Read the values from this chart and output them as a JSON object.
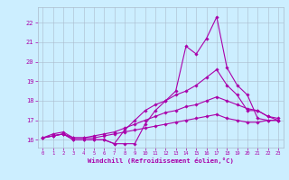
{
  "xlabel": "Windchill (Refroidissement éolien,°C)",
  "bg_color": "#cceeff",
  "grid_color": "#aabbcc",
  "line_color": "#aa00aa",
  "x": [
    0,
    1,
    2,
    3,
    4,
    5,
    6,
    7,
    8,
    9,
    10,
    11,
    12,
    13,
    14,
    15,
    16,
    17,
    18,
    19,
    20,
    21,
    22,
    23
  ],
  "line1": [
    16.1,
    16.2,
    16.3,
    16.0,
    16.0,
    16.0,
    16.0,
    15.8,
    15.8,
    15.8,
    16.8,
    17.5,
    18.0,
    18.5,
    20.8,
    20.4,
    21.2,
    22.3,
    19.7,
    18.8,
    18.3,
    17.1,
    17.0,
    17.0
  ],
  "line2": [
    16.1,
    16.2,
    16.3,
    16.0,
    16.0,
    16.0,
    16.0,
    15.8,
    16.5,
    17.0,
    17.5,
    17.8,
    18.0,
    18.3,
    18.5,
    18.8,
    19.2,
    19.6,
    18.8,
    18.3,
    17.5,
    17.5,
    17.2,
    17.0
  ],
  "line3": [
    16.1,
    16.3,
    16.4,
    16.1,
    16.1,
    16.2,
    16.3,
    16.4,
    16.6,
    16.8,
    17.0,
    17.2,
    17.4,
    17.5,
    17.7,
    17.8,
    18.0,
    18.2,
    18.0,
    17.8,
    17.6,
    17.5,
    17.2,
    17.1
  ],
  "line4": [
    16.1,
    16.2,
    16.3,
    16.1,
    16.1,
    16.1,
    16.2,
    16.3,
    16.4,
    16.5,
    16.6,
    16.7,
    16.8,
    16.9,
    17.0,
    17.1,
    17.2,
    17.3,
    17.1,
    17.0,
    16.9,
    16.9,
    17.0,
    17.0
  ],
  "ylim": [
    15.6,
    22.8
  ],
  "yticks": [
    16,
    17,
    18,
    19,
    20,
    21,
    22
  ],
  "xlim": [
    -0.5,
    23.5
  ],
  "xticks": [
    0,
    1,
    2,
    3,
    4,
    5,
    6,
    7,
    8,
    9,
    10,
    11,
    12,
    13,
    14,
    15,
    16,
    17,
    18,
    19,
    20,
    21,
    22,
    23
  ]
}
